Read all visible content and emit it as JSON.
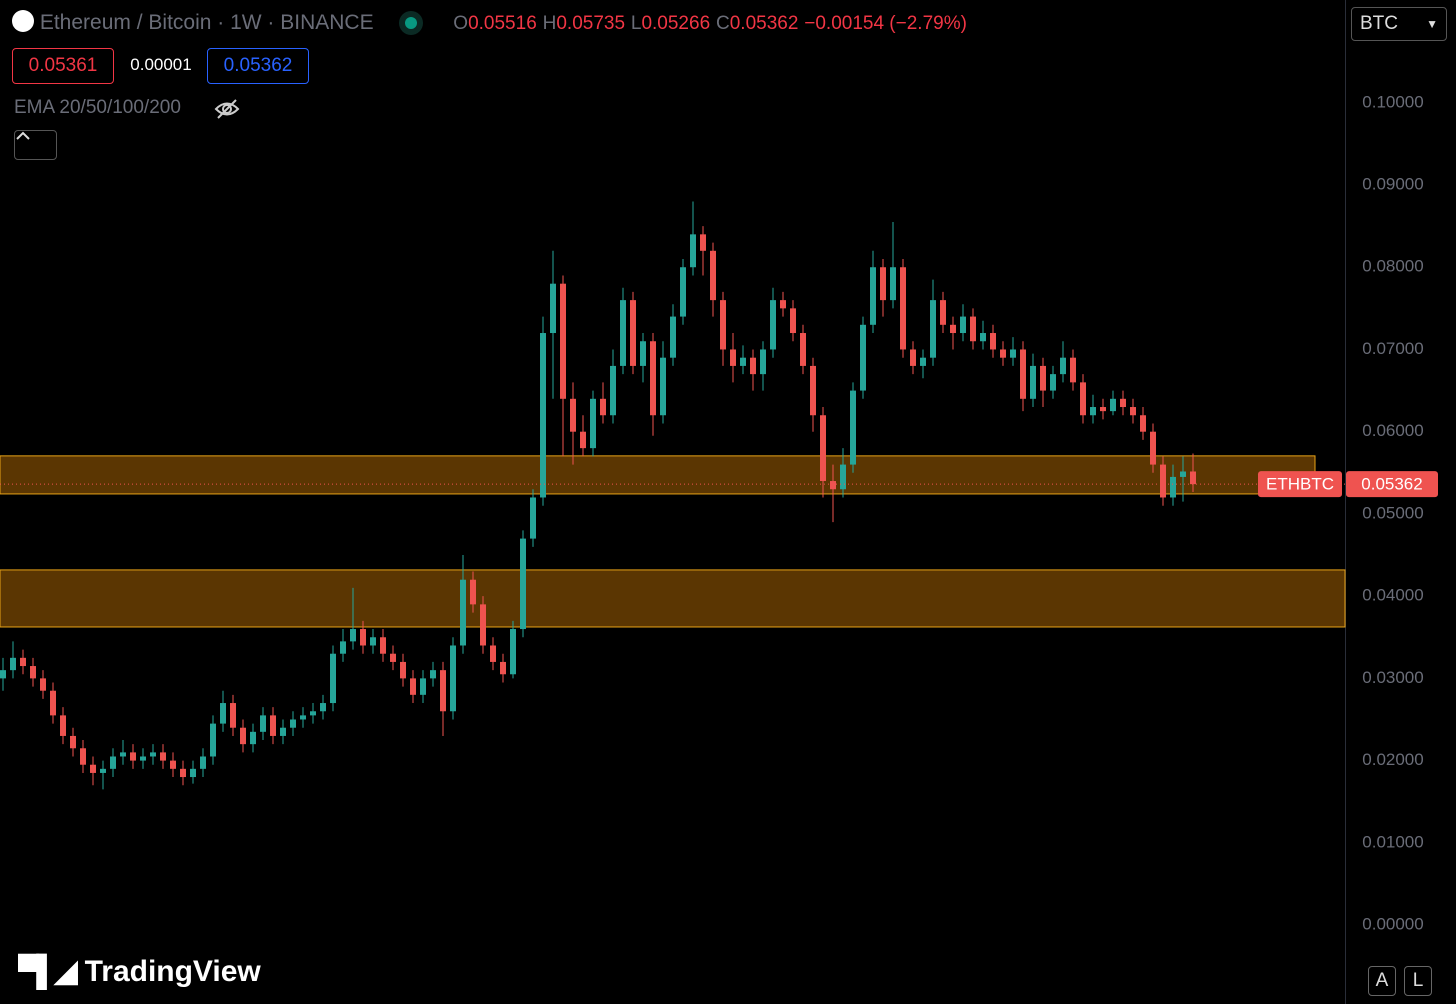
{
  "header": {
    "title": "Ethereum / Bitcoin · 1W · BINANCE",
    "o_label": "O",
    "o": "0.05516",
    "h_label": "H",
    "h": "0.05735",
    "l_label": "L",
    "l": "0.05266",
    "c_label": "C",
    "c": "0.05362",
    "change": "−0.00154 (−2.79%)",
    "bid": "0.05361",
    "spread": "0.00001",
    "ask": "0.05362",
    "indicator": "EMA 20/50/100/200",
    "currency": "BTC",
    "logo": "TradingView",
    "btn_a": "A",
    "btn_l": "L"
  },
  "chart_data": {
    "type": "candlestick",
    "symbol": "ETHBTC",
    "up_color": "#26a69a",
    "down_color": "#ef5350",
    "last_price": 0.05362,
    "open": [
      0.03,
      0.031,
      0.0325,
      0.0315,
      0.03,
      0.0285,
      0.0255,
      0.023,
      0.0215,
      0.0195,
      0.0185,
      0.019,
      0.0205,
      0.021,
      0.02,
      0.0205,
      0.021,
      0.02,
      0.019,
      0.018,
      0.019,
      0.0205,
      0.0245,
      0.027,
      0.024,
      0.022,
      0.0235,
      0.0255,
      0.023,
      0.024,
      0.025,
      0.0255,
      0.026,
      0.027,
      0.033,
      0.0345,
      0.036,
      0.034,
      0.035,
      0.033,
      0.032,
      0.03,
      0.028,
      0.03,
      0.031,
      0.026,
      0.034,
      0.042,
      0.039,
      0.034,
      0.032,
      0.0305,
      0.036,
      0.047,
      0.052,
      0.072,
      0.078,
      0.064,
      0.06,
      0.058,
      0.064,
      0.062,
      0.068,
      0.076,
      0.068,
      0.071,
      0.062,
      0.069,
      0.074,
      0.08,
      0.084,
      0.082,
      0.076,
      0.07,
      0.068,
      0.069,
      0.067,
      0.07,
      0.076,
      0.075,
      0.072,
      0.068,
      0.062,
      0.054,
      0.053,
      0.056,
      0.065,
      0.073,
      0.08,
      0.076,
      0.08,
      0.07,
      0.068,
      0.069,
      0.076,
      0.073,
      0.072,
      0.074,
      0.071,
      0.072,
      0.07,
      0.069,
      0.07,
      0.064,
      0.068,
      0.065,
      0.067,
      0.069,
      0.066,
      0.062,
      0.063,
      0.0625,
      0.064,
      0.063,
      0.062,
      0.06,
      0.056,
      0.052,
      0.0545,
      0.05516
    ],
    "high": [
      0.0325,
      0.0345,
      0.0335,
      0.0325,
      0.031,
      0.0295,
      0.0265,
      0.024,
      0.0225,
      0.0205,
      0.02,
      0.0215,
      0.0225,
      0.022,
      0.0215,
      0.022,
      0.022,
      0.021,
      0.02,
      0.02,
      0.0215,
      0.0255,
      0.0285,
      0.028,
      0.025,
      0.0245,
      0.0265,
      0.0265,
      0.025,
      0.026,
      0.0265,
      0.027,
      0.028,
      0.034,
      0.036,
      0.041,
      0.037,
      0.036,
      0.036,
      0.034,
      0.033,
      0.031,
      0.031,
      0.032,
      0.032,
      0.035,
      0.045,
      0.043,
      0.04,
      0.035,
      0.033,
      0.037,
      0.048,
      0.053,
      0.074,
      0.082,
      0.079,
      0.066,
      0.062,
      0.065,
      0.066,
      0.07,
      0.0775,
      0.077,
      0.072,
      0.072,
      0.071,
      0.0755,
      0.081,
      0.088,
      0.085,
      0.083,
      0.077,
      0.072,
      0.0705,
      0.07,
      0.071,
      0.0775,
      0.077,
      0.076,
      0.073,
      0.069,
      0.063,
      0.056,
      0.058,
      0.066,
      0.074,
      0.082,
      0.081,
      0.0855,
      0.081,
      0.071,
      0.07,
      0.0785,
      0.077,
      0.074,
      0.0755,
      0.075,
      0.0735,
      0.073,
      0.071,
      0.0715,
      0.071,
      0.0695,
      0.069,
      0.068,
      0.071,
      0.07,
      0.067,
      0.0645,
      0.064,
      0.065,
      0.065,
      0.064,
      0.063,
      0.061,
      0.057,
      0.056,
      0.057,
      0.05735
    ],
    "low": [
      0.0285,
      0.03,
      0.0305,
      0.029,
      0.0275,
      0.0245,
      0.022,
      0.0205,
      0.0185,
      0.017,
      0.0165,
      0.018,
      0.0195,
      0.019,
      0.019,
      0.0195,
      0.019,
      0.018,
      0.017,
      0.0172,
      0.018,
      0.0195,
      0.0235,
      0.023,
      0.021,
      0.021,
      0.0225,
      0.022,
      0.022,
      0.023,
      0.024,
      0.0245,
      0.025,
      0.026,
      0.032,
      0.0335,
      0.033,
      0.033,
      0.032,
      0.031,
      0.029,
      0.027,
      0.027,
      0.029,
      0.023,
      0.025,
      0.033,
      0.038,
      0.033,
      0.031,
      0.0295,
      0.03,
      0.035,
      0.046,
      0.051,
      0.064,
      0.057,
      0.056,
      0.057,
      0.057,
      0.061,
      0.061,
      0.067,
      0.067,
      0.066,
      0.0595,
      0.061,
      0.068,
      0.073,
      0.079,
      0.079,
      0.074,
      0.068,
      0.066,
      0.067,
      0.065,
      0.065,
      0.069,
      0.074,
      0.071,
      0.067,
      0.06,
      0.052,
      0.049,
      0.052,
      0.055,
      0.064,
      0.072,
      0.074,
      0.075,
      0.069,
      0.067,
      0.0665,
      0.068,
      0.072,
      0.07,
      0.071,
      0.07,
      0.07,
      0.069,
      0.068,
      0.068,
      0.0625,
      0.063,
      0.063,
      0.064,
      0.066,
      0.065,
      0.061,
      0.061,
      0.0615,
      0.062,
      0.062,
      0.061,
      0.059,
      0.055,
      0.051,
      0.051,
      0.0515,
      0.05266
    ],
    "close": [
      0.031,
      0.0325,
      0.0315,
      0.03,
      0.0285,
      0.0255,
      0.023,
      0.0215,
      0.0195,
      0.0185,
      0.019,
      0.0205,
      0.021,
      0.02,
      0.0205,
      0.021,
      0.02,
      0.019,
      0.018,
      0.019,
      0.0205,
      0.0245,
      0.027,
      0.024,
      0.022,
      0.0235,
      0.0255,
      0.023,
      0.024,
      0.025,
      0.0255,
      0.026,
      0.027,
      0.033,
      0.0345,
      0.036,
      0.034,
      0.035,
      0.033,
      0.032,
      0.03,
      0.028,
      0.03,
      0.031,
      0.026,
      0.034,
      0.042,
      0.039,
      0.034,
      0.032,
      0.0305,
      0.036,
      0.047,
      0.052,
      0.072,
      0.078,
      0.064,
      0.06,
      0.058,
      0.064,
      0.062,
      0.068,
      0.076,
      0.068,
      0.071,
      0.062,
      0.069,
      0.074,
      0.08,
      0.084,
      0.082,
      0.076,
      0.07,
      0.068,
      0.069,
      0.067,
      0.07,
      0.076,
      0.075,
      0.072,
      0.068,
      0.062,
      0.054,
      0.053,
      0.056,
      0.065,
      0.073,
      0.08,
      0.076,
      0.08,
      0.07,
      0.068,
      0.069,
      0.076,
      0.073,
      0.072,
      0.074,
      0.071,
      0.072,
      0.07,
      0.069,
      0.07,
      0.064,
      0.068,
      0.065,
      0.067,
      0.069,
      0.066,
      0.062,
      0.063,
      0.0625,
      0.064,
      0.063,
      0.062,
      0.06,
      0.056,
      0.052,
      0.0545,
      0.05516,
      0.05362
    ],
    "zones": [
      {
        "top": 0.05706,
        "bottom": 0.05243
      },
      {
        "top": 0.04319,
        "bottom": 0.03625
      }
    ],
    "ylim": [
      -0.0096,
      0.1125
    ],
    "yticks": [
      {
        "value": 0,
        "label": "0.00000"
      },
      {
        "value": 0.01,
        "label": "0.01000"
      },
      {
        "value": 0.02,
        "label": "0.02000"
      },
      {
        "value": 0.03,
        "label": "0.03000"
      },
      {
        "value": 0.04,
        "label": "0.04000"
      },
      {
        "value": 0.05,
        "label": "0.05000"
      },
      {
        "value": 0.06,
        "label": "0.06000"
      },
      {
        "value": 0.07,
        "label": "0.07000"
      },
      {
        "value": 0.08,
        "label": "0.08000"
      },
      {
        "value": 0.09,
        "label": "0.09000"
      },
      {
        "value": 0.1,
        "label": "0.10000"
      }
    ]
  }
}
